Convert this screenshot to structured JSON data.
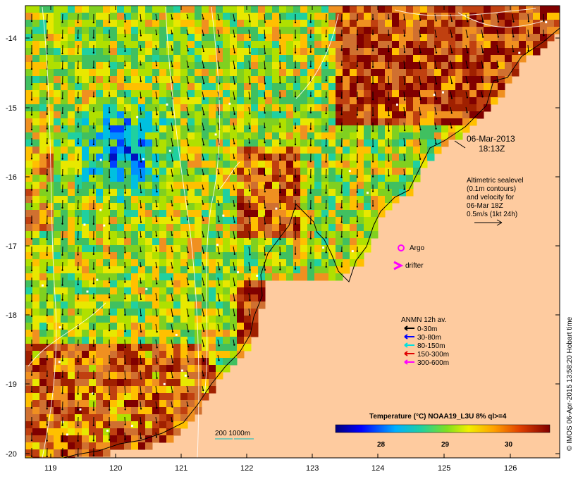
{
  "map": {
    "date": "06-Mar-2013",
    "time": "18:13Z",
    "altimetry_lines": [
      "Altimetric sealevel",
      "(0.1m contours)",
      "and velocity for",
      "06-Mar 18Z",
      "0.5m/s (1kt 24h)"
    ],
    "argo_label": "Argo",
    "drifter_label": "drifter",
    "anmn": {
      "title": "ANMN 12h av.",
      "items": [
        {
          "label": "0-30m",
          "color": "#000000"
        },
        {
          "label": "30-80m",
          "color": "#0000ff"
        },
        {
          "label": "80-150m",
          "color": "#00e0e0"
        },
        {
          "label": "150-300m",
          "color": "#e00000"
        },
        {
          "label": "300-600m",
          "color": "#ff00ff"
        }
      ]
    },
    "depth_contours_label": "200  1000m",
    "colorbar": {
      "title": "Temperature (°C) NOAA19_L3U 8% ql>=4",
      "ticks": [
        "28",
        "29",
        "30"
      ]
    },
    "credit": "© IMOS 06-Apr-2015 13:58:20 Hobart time",
    "lat_ticks": [
      "-14",
      "-15",
      "-16",
      "-17",
      "-18",
      "-19",
      "-20"
    ],
    "lon_ticks": [
      "119",
      "120",
      "121",
      "122",
      "123",
      "124",
      "125",
      "126"
    ],
    "land_color": "#fecb9f"
  }
}
